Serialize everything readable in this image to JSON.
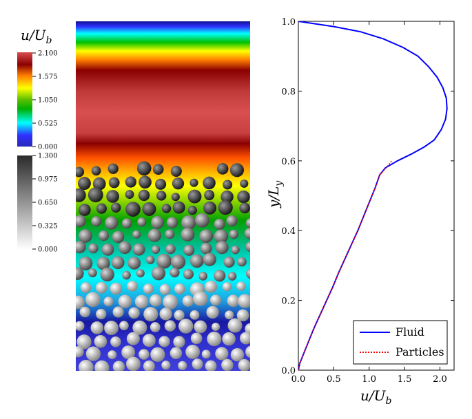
{
  "colorbar_velocity": {
    "title": "u/U_b",
    "title_main": "u/U",
    "title_sub": "b",
    "ticks": [
      "2.100",
      "1.575",
      "1.050",
      "0.525",
      "0.000"
    ],
    "range": [
      0,
      2.1
    ]
  },
  "colorbar_particles": {
    "ticks": [
      "1.300",
      "0.975",
      "0.650",
      "0.325",
      "0.000"
    ],
    "range": [
      0,
      1.3
    ]
  },
  "snapshot": {
    "description_colors": [
      "#2b2bc8",
      "#00ffff",
      "#00a000",
      "#ffff00",
      "#ff7f00",
      "#8b0000",
      "#d94f4f"
    ]
  },
  "chart_data": {
    "type": "line",
    "title": "",
    "xlabel": "u/U_b",
    "xlabel_main": "u/U",
    "xlabel_sub": "b",
    "ylabel": "y/L_y",
    "ylabel_main": "y/L",
    "ylabel_sub": "y",
    "xlim": [
      0.0,
      2.2
    ],
    "ylim": [
      0.0,
      1.0
    ],
    "xticks": [
      "0.0",
      "0.5",
      "1.0",
      "1.5",
      "2.0"
    ],
    "yticks": [
      "0.0",
      "0.2",
      "0.4",
      "0.6",
      "0.8",
      "1.0"
    ],
    "legend_position": "bottom-right",
    "series": [
      {
        "name": "Fluid",
        "color": "#0000ff",
        "style": "solid",
        "points": [
          [
            0.0,
            0.0
          ],
          [
            0.02,
            0.02
          ],
          [
            0.06,
            0.04
          ],
          [
            0.14,
            0.08
          ],
          [
            0.22,
            0.12
          ],
          [
            0.31,
            0.16
          ],
          [
            0.4,
            0.2
          ],
          [
            0.49,
            0.24
          ],
          [
            0.57,
            0.28
          ],
          [
            0.66,
            0.32
          ],
          [
            0.75,
            0.36
          ],
          [
            0.84,
            0.4
          ],
          [
            0.92,
            0.44
          ],
          [
            1.0,
            0.48
          ],
          [
            1.08,
            0.52
          ],
          [
            1.15,
            0.56
          ],
          [
            1.23,
            0.58
          ],
          [
            1.4,
            0.6
          ],
          [
            1.6,
            0.62
          ],
          [
            1.78,
            0.64
          ],
          [
            1.92,
            0.66
          ],
          [
            2.02,
            0.69
          ],
          [
            2.08,
            0.72
          ],
          [
            2.1,
            0.75
          ],
          [
            2.09,
            0.78
          ],
          [
            2.04,
            0.81
          ],
          [
            1.96,
            0.84
          ],
          [
            1.84,
            0.87
          ],
          [
            1.69,
            0.9
          ],
          [
            1.48,
            0.925
          ],
          [
            1.2,
            0.95
          ],
          [
            0.88,
            0.97
          ],
          [
            0.5,
            0.985
          ],
          [
            0.0,
            1.0
          ]
        ]
      },
      {
        "name": "Particles",
        "color": "#ff0000",
        "style": "dotted",
        "points": [
          [
            0.0,
            0.0
          ],
          [
            0.02,
            0.02
          ],
          [
            0.06,
            0.04
          ],
          [
            0.14,
            0.08
          ],
          [
            0.22,
            0.12
          ],
          [
            0.31,
            0.16
          ],
          [
            0.4,
            0.2
          ],
          [
            0.49,
            0.24
          ],
          [
            0.57,
            0.28
          ],
          [
            0.66,
            0.32
          ],
          [
            0.75,
            0.36
          ],
          [
            0.84,
            0.4
          ],
          [
            0.92,
            0.44
          ],
          [
            1.0,
            0.48
          ],
          [
            1.08,
            0.52
          ],
          [
            1.15,
            0.56
          ],
          [
            1.24,
            0.58
          ],
          [
            1.3,
            0.595
          ],
          [
            1.32,
            0.6
          ]
        ]
      }
    ]
  }
}
